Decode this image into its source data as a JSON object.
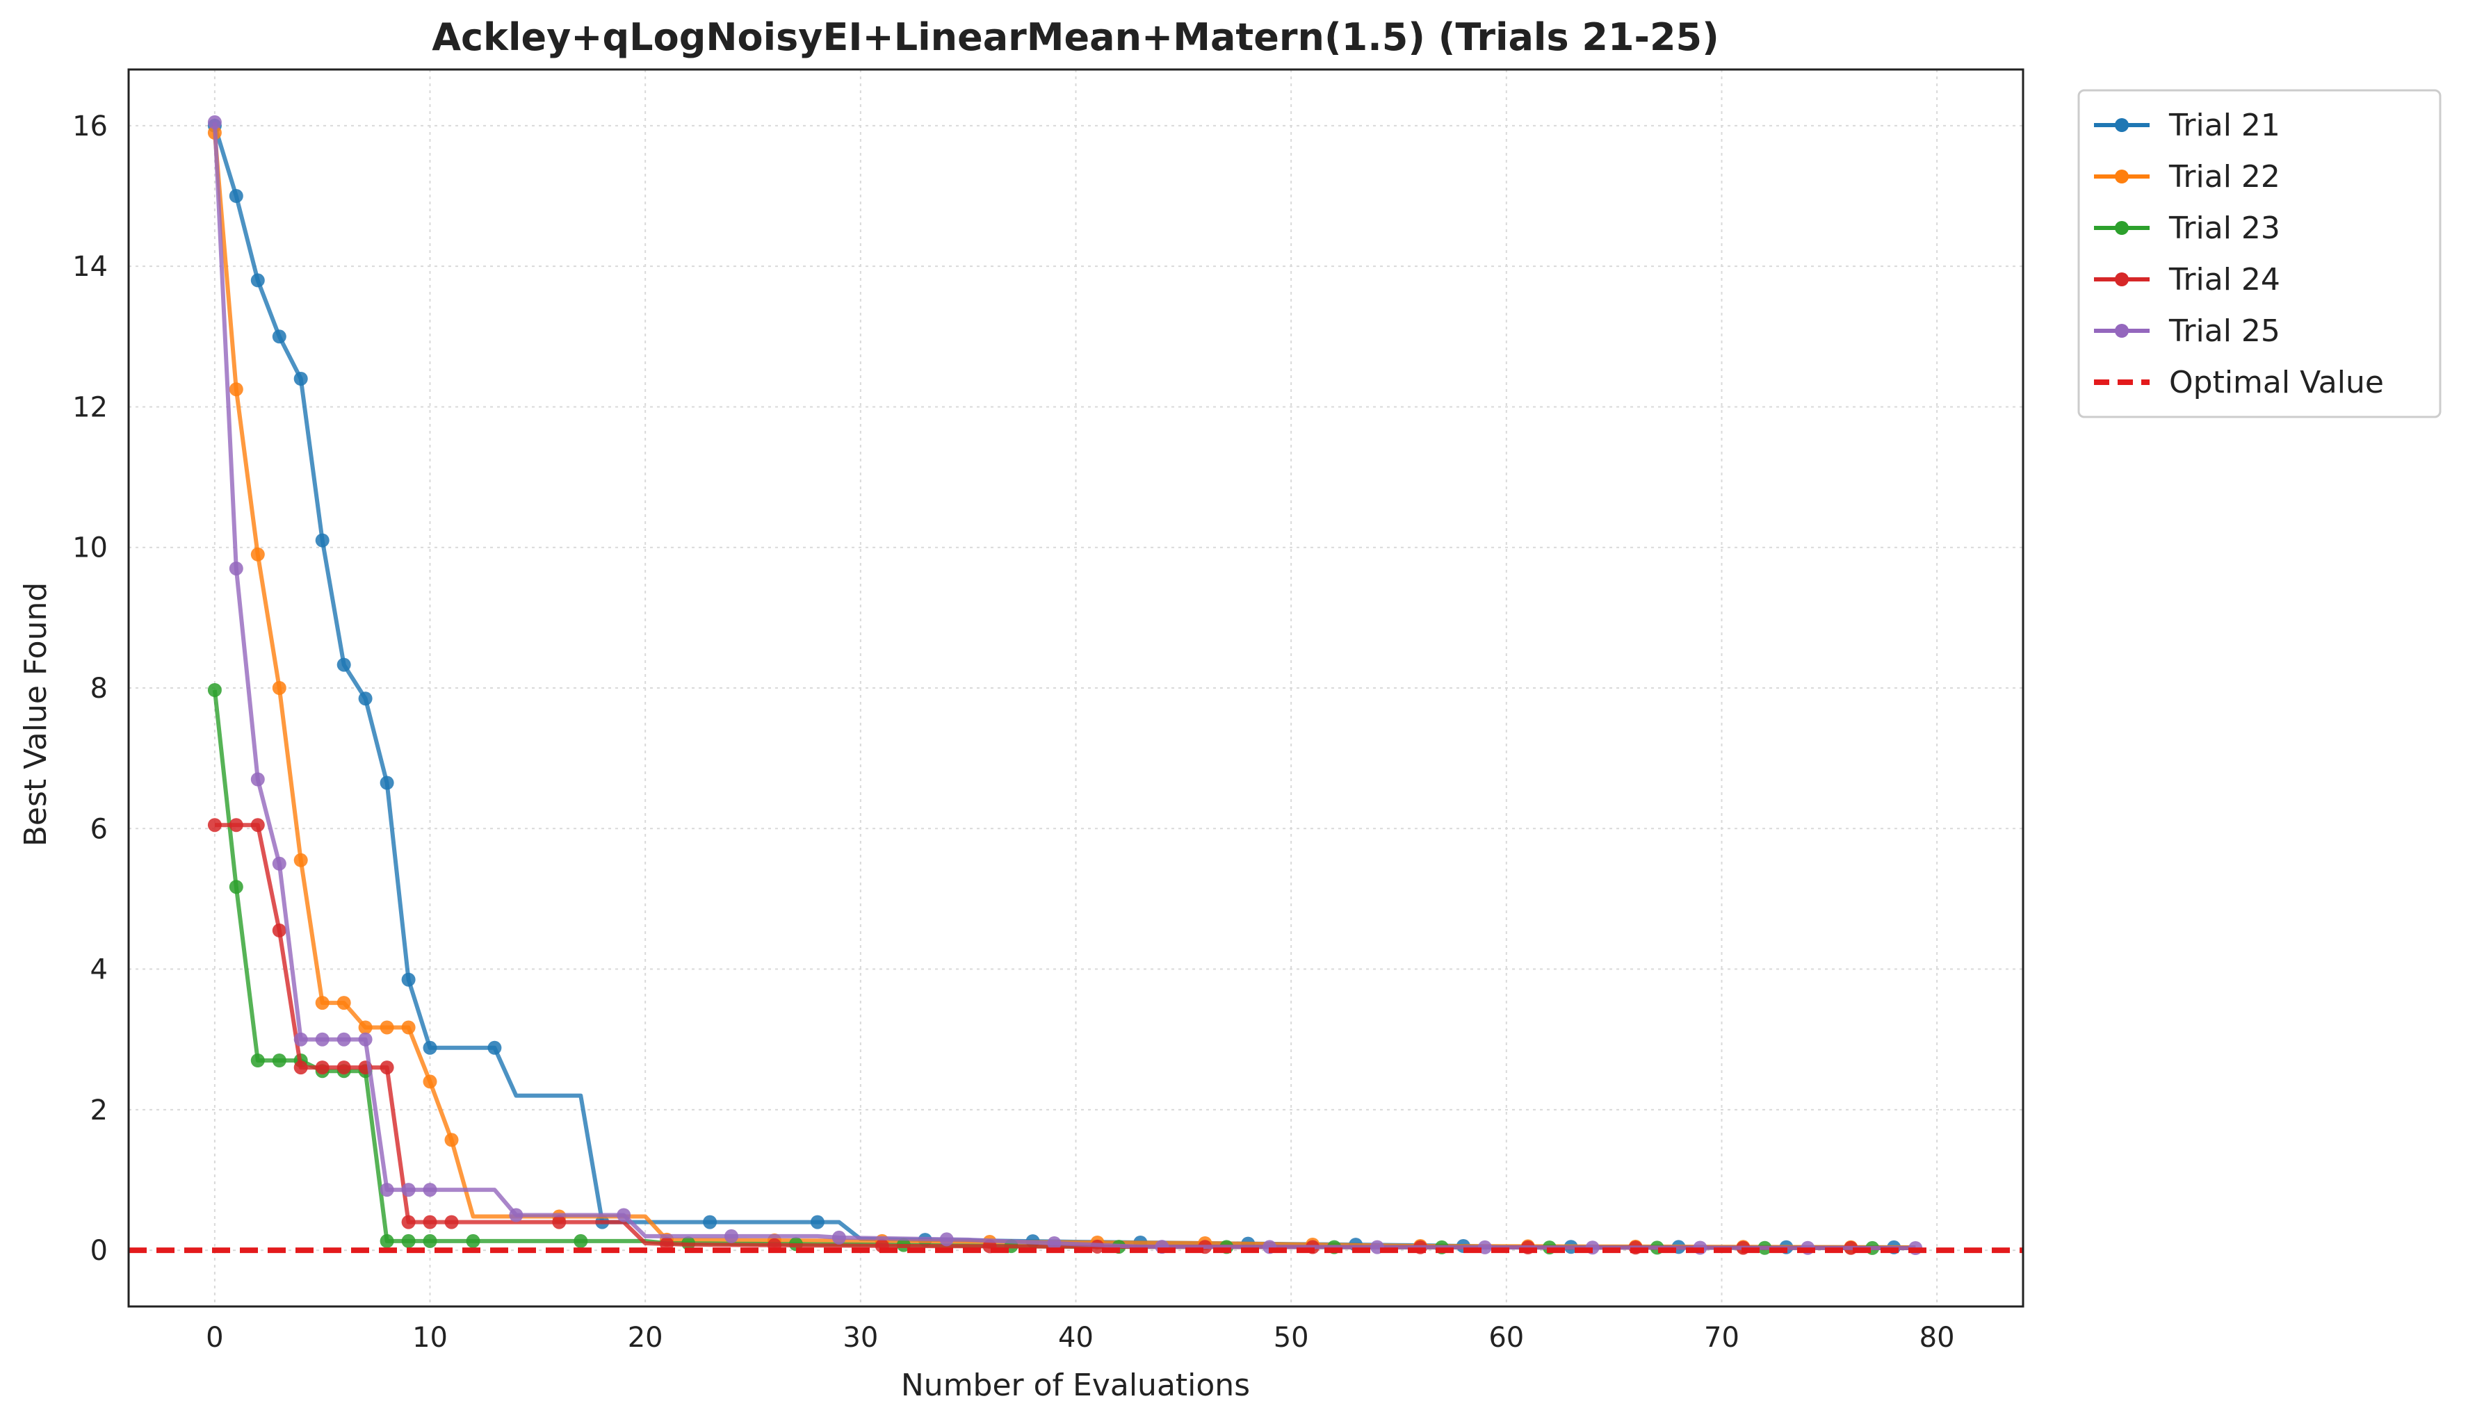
{
  "chart_data": {
    "type": "line",
    "title": "Ackley+qLogNoisyEI+LinearMean+Matern(1.5) (Trials 21-25)",
    "xlabel": "Number of Evaluations",
    "ylabel": "Best Value Found",
    "xlim": [
      -4,
      84
    ],
    "ylim": [
      -0.8,
      16.8
    ],
    "xticks": [
      0,
      10,
      20,
      30,
      40,
      50,
      60,
      70,
      80
    ],
    "yticks": [
      0,
      2,
      4,
      6,
      8,
      10,
      12,
      14,
      16
    ],
    "grid": true,
    "legend_position": "outside-top-right",
    "optimal_value": 0,
    "optimal_label": "Optimal Value",
    "optimal_color": "#e31a1c",
    "series": [
      {
        "name": "Trial 21",
        "color": "#1f77b4",
        "marker_every": 5,
        "steps": [
          [
            0,
            16.0
          ],
          [
            1,
            15.0
          ],
          [
            2,
            13.8
          ],
          [
            3,
            13.0
          ],
          [
            4,
            12.4
          ],
          [
            5,
            10.1
          ],
          [
            6,
            8.33
          ],
          [
            7,
            7.85
          ],
          [
            8,
            6.65
          ],
          [
            9,
            3.85
          ],
          [
            10,
            2.88
          ],
          [
            13,
            2.88
          ],
          [
            14,
            2.2
          ],
          [
            17,
            2.2
          ],
          [
            18,
            0.4
          ],
          [
            29,
            0.4
          ],
          [
            30,
            0.16
          ],
          [
            40,
            0.12
          ],
          [
            46,
            0.1
          ],
          [
            56,
            0.07
          ],
          [
            60,
            0.05
          ],
          [
            80,
            0.04
          ]
        ]
      },
      {
        "name": "Trial 22",
        "color": "#ff7f0e",
        "marker_every": 5,
        "steps": [
          [
            0,
            15.9
          ],
          [
            1,
            12.25
          ],
          [
            2,
            9.9
          ],
          [
            3,
            8.0
          ],
          [
            4,
            5.55
          ],
          [
            5,
            3.52
          ],
          [
            6,
            3.52
          ],
          [
            7,
            3.17
          ],
          [
            9,
            3.17
          ],
          [
            10,
            2.4
          ],
          [
            11,
            1.57
          ],
          [
            12,
            0.48
          ],
          [
            20,
            0.48
          ],
          [
            21,
            0.15
          ],
          [
            46,
            0.1
          ],
          [
            56,
            0.06
          ],
          [
            80,
            0.04
          ]
        ]
      },
      {
        "name": "Trial 23",
        "color": "#2ca02c",
        "marker_every": 5,
        "steps": [
          [
            0,
            7.97
          ],
          [
            1,
            5.17
          ],
          [
            2,
            2.7
          ],
          [
            4,
            2.7
          ],
          [
            5,
            2.55
          ],
          [
            7,
            2.55
          ],
          [
            8,
            0.13
          ],
          [
            20,
            0.13
          ],
          [
            21,
            0.1
          ],
          [
            30,
            0.08
          ],
          [
            40,
            0.05
          ],
          [
            80,
            0.03
          ]
        ]
      },
      {
        "name": "Trial 24",
        "color": "#d62728",
        "marker_every": 5,
        "steps": [
          [
            0,
            6.05
          ],
          [
            2,
            6.05
          ],
          [
            3,
            4.55
          ],
          [
            4,
            2.6
          ],
          [
            8,
            2.6
          ],
          [
            9,
            0.4
          ],
          [
            19,
            0.4
          ],
          [
            20,
            0.1
          ],
          [
            22,
            0.08
          ],
          [
            32,
            0.06
          ],
          [
            42,
            0.05
          ],
          [
            80,
            0.03
          ]
        ]
      },
      {
        "name": "Trial 25",
        "color": "#9467bd",
        "marker_every": 5,
        "steps": [
          [
            0,
            16.05
          ],
          [
            1,
            9.7
          ],
          [
            2,
            6.7
          ],
          [
            3,
            5.5
          ],
          [
            4,
            3.0
          ],
          [
            7,
            3.0
          ],
          [
            8,
            0.86
          ],
          [
            13,
            0.86
          ],
          [
            14,
            0.5
          ],
          [
            19,
            0.5
          ],
          [
            20,
            0.2
          ],
          [
            28,
            0.2
          ],
          [
            29,
            0.18
          ],
          [
            35,
            0.15
          ],
          [
            43,
            0.05
          ],
          [
            80,
            0.03
          ]
        ]
      }
    ]
  }
}
